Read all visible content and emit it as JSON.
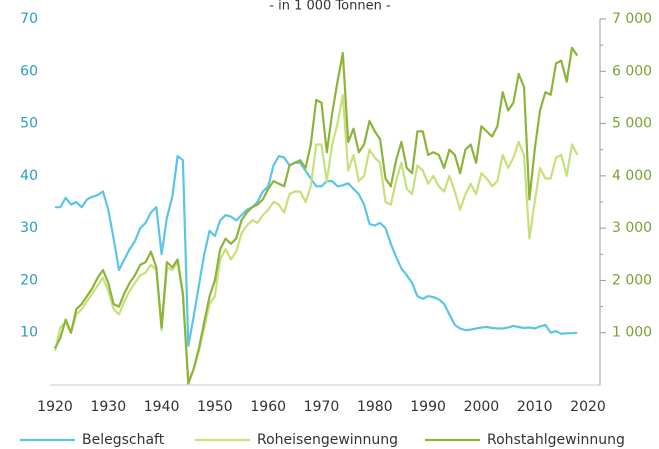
{
  "chart_data": {
    "type": "line",
    "subtitle": "- in 1 000 Tonnen -",
    "x": [
      1920,
      1921,
      1922,
      1923,
      1924,
      1925,
      1926,
      1927,
      1928,
      1929,
      1930,
      1931,
      1932,
      1933,
      1934,
      1935,
      1936,
      1937,
      1938,
      1939,
      1940,
      1941,
      1942,
      1943,
      1944,
      1945,
      1946,
      1947,
      1948,
      1949,
      1950,
      1951,
      1952,
      1953,
      1954,
      1955,
      1956,
      1957,
      1958,
      1959,
      1960,
      1961,
      1962,
      1963,
      1964,
      1965,
      1966,
      1967,
      1968,
      1969,
      1970,
      1971,
      1972,
      1973,
      1974,
      1975,
      1976,
      1977,
      1978,
      1979,
      1980,
      1981,
      1982,
      1983,
      1984,
      1985,
      1986,
      1987,
      1988,
      1989,
      1990,
      1991,
      1992,
      1993,
      1994,
      1995,
      1996,
      1997,
      1998,
      1999,
      2000,
      2001,
      2002,
      2003,
      2004,
      2005,
      2006,
      2007,
      2008,
      2009,
      2010,
      2011,
      2012,
      2013,
      2014,
      2015,
      2016,
      2017,
      2018
    ],
    "series": [
      {
        "name": "Belegschaft",
        "color": "#5bc5e8",
        "axis": "y",
        "values": [
          34,
          34,
          35.8,
          34.5,
          35,
          34,
          35.5,
          36,
          36.3,
          37,
          33.5,
          28,
          22,
          24,
          26,
          27.5,
          30,
          31,
          33,
          34,
          25,
          32,
          36,
          43.8,
          43,
          7.5,
          13,
          19,
          25,
          29.5,
          28.5,
          31.5,
          32.5,
          32.2,
          31.5,
          32.5,
          33.5,
          34,
          35,
          37,
          38,
          42,
          43.8,
          43.5,
          42,
          42.5,
          42.5,
          41,
          39.5,
          38,
          38,
          39,
          39,
          38,
          38.2,
          38.6,
          37.5,
          36.5,
          34.5,
          30.8,
          30.5,
          31,
          30,
          27,
          24.5,
          22.3,
          21,
          19.5,
          17,
          16.5,
          17,
          16.8,
          16.4,
          15.5,
          13.5,
          11.5,
          10.8,
          10.5,
          10.6,
          10.8,
          11,
          11.1,
          10.9,
          10.8,
          10.8,
          11,
          11.3,
          11.1,
          10.9,
          11,
          10.8,
          11.2,
          11.5,
          10,
          10.3,
          9.8,
          9.9,
          9.9,
          10
        ]
      },
      {
        "name": "Roheisengewinnung",
        "color": "#c8e07a",
        "axis": "y2",
        "values": [
          650,
          1100,
          1200,
          1000,
          1350,
          1450,
          1600,
          1750,
          1900,
          2050,
          1800,
          1450,
          1350,
          1600,
          1800,
          1950,
          2100,
          2150,
          2300,
          2200,
          1050,
          2250,
          2200,
          2350,
          1700,
          50,
          300,
          650,
          1100,
          1550,
          1700,
          2400,
          2600,
          2400,
          2550,
          2900,
          3050,
          3150,
          3100,
          3250,
          3350,
          3500,
          3450,
          3300,
          3650,
          3700,
          3700,
          3500,
          3800,
          4600,
          4600,
          3900,
          4600,
          5000,
          5550,
          4100,
          4400,
          3900,
          4000,
          4500,
          4350,
          4250,
          3500,
          3450,
          3900,
          4250,
          3750,
          3650,
          4200,
          4100,
          3850,
          4000,
          3800,
          3700,
          4000,
          3700,
          3350,
          3650,
          3850,
          3650,
          4050,
          3950,
          3800,
          3900,
          4400,
          4150,
          4350,
          4650,
          4400,
          2800,
          3500,
          4150,
          3950,
          3950,
          4350,
          4400,
          4000,
          4600,
          4400
        ]
      },
      {
        "name": "Rohstahlgewinnung",
        "color": "#8db43a",
        "axis": "y2",
        "values": [
          700,
          900,
          1250,
          1000,
          1450,
          1550,
          1700,
          1850,
          2050,
          2200,
          1950,
          1550,
          1500,
          1750,
          1950,
          2100,
          2300,
          2350,
          2550,
          2250,
          1100,
          2350,
          2250,
          2400,
          1750,
          30,
          300,
          700,
          1200,
          1700,
          2000,
          2600,
          2800,
          2700,
          2800,
          3150,
          3300,
          3400,
          3450,
          3550,
          3750,
          3900,
          3850,
          3800,
          4200,
          4250,
          4300,
          4150,
          4600,
          5450,
          5400,
          4450,
          5200,
          5800,
          6350,
          4650,
          4900,
          4450,
          4600,
          5050,
          4850,
          4700,
          3950,
          3800,
          4300,
          4650,
          4150,
          4050,
          4850,
          4850,
          4400,
          4450,
          4400,
          4150,
          4500,
          4400,
          4050,
          4500,
          4600,
          4250,
          4950,
          4850,
          4750,
          4950,
          5600,
          5250,
          5400,
          5950,
          5700,
          3550,
          4500,
          5250,
          5600,
          5550,
          6150,
          6200,
          5800,
          6450,
          6300
        ]
      }
    ],
    "xlim": [
      1920,
      2020
    ],
    "xticks": [
      1920,
      1930,
      1940,
      1950,
      1960,
      1970,
      1980,
      1990,
      2000,
      2010,
      2020
    ],
    "ylim": [
      0,
      70
    ],
    "yticks": [
      10,
      20,
      30,
      40,
      50,
      60,
      70
    ],
    "y2lim": [
      0,
      7000
    ],
    "y2ticks": [
      {
        "value": 1000,
        "label": "1 000"
      },
      {
        "value": 2000,
        "label": "2 000"
      },
      {
        "value": 3000,
        "label": "3 000"
      },
      {
        "value": 4000,
        "label": "4 000"
      },
      {
        "value": 5000,
        "label": "5 000"
      },
      {
        "value": 6000,
        "label": "6 000"
      },
      {
        "value": 7000,
        "label": "7 000"
      }
    ],
    "legend": "bottom"
  }
}
